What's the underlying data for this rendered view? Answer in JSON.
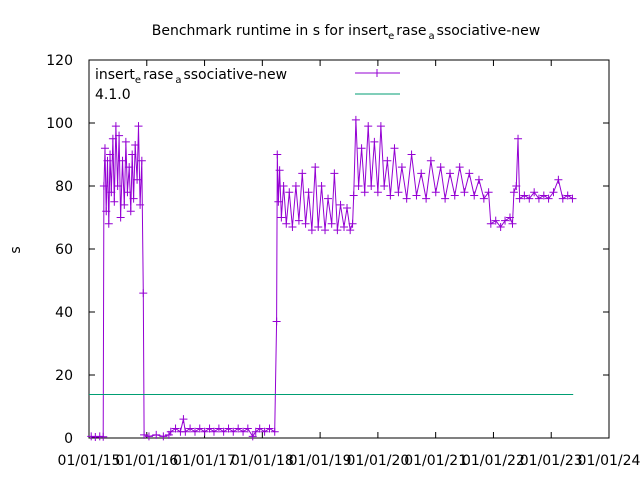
{
  "chart_data": {
    "type": "line",
    "title_parts": [
      "Benchmark runtime in s for insert",
      "e",
      "rase",
      "a",
      "ssociative-new"
    ],
    "ylabel": "s",
    "xlabel": "",
    "xlim": [
      "2015-01-01",
      "2024-01-01"
    ],
    "ylim": [
      0,
      120
    ],
    "y_ticks": [
      "0",
      "20",
      "40",
      "60",
      "80",
      "100",
      "120"
    ],
    "x_ticks": [
      "01/01/15",
      "01/01/16",
      "01/01/17",
      "01/01/18",
      "01/01/19",
      "01/01/20",
      "01/01/21",
      "01/01/22",
      "01/01/23",
      "01/01/24"
    ],
    "legend_position": "top-left",
    "grid": false,
    "series": [
      {
        "name_parts": [
          "insert",
          "e",
          "rase",
          "a",
          "ssociative-new"
        ],
        "color": "#9400d3",
        "marker": "plus",
        "points": [
          [
            "2015-01-15",
            0.5
          ],
          [
            "2015-02-10",
            0.3
          ],
          [
            "2015-03-10",
            0.5
          ],
          [
            "2015-04-01",
            0.4
          ],
          [
            "2015-04-05",
            80
          ],
          [
            "2015-04-12",
            92
          ],
          [
            "2015-04-20",
            72
          ],
          [
            "2015-04-28",
            88
          ],
          [
            "2015-05-06",
            68
          ],
          [
            "2015-05-14",
            90
          ],
          [
            "2015-05-22",
            78
          ],
          [
            "2015-06-01",
            95
          ],
          [
            "2015-06-10",
            75
          ],
          [
            "2015-06-20",
            99
          ],
          [
            "2015-07-01",
            80
          ],
          [
            "2015-07-10",
            96
          ],
          [
            "2015-07-20",
            70
          ],
          [
            "2015-08-01",
            88
          ],
          [
            "2015-08-12",
            74
          ],
          [
            "2015-08-22",
            94
          ],
          [
            "2015-09-01",
            78
          ],
          [
            "2015-09-12",
            86
          ],
          [
            "2015-09-22",
            72
          ],
          [
            "2015-10-01",
            90
          ],
          [
            "2015-10-10",
            76
          ],
          [
            "2015-10-20",
            93
          ],
          [
            "2015-11-01",
            82
          ],
          [
            "2015-11-10",
            99
          ],
          [
            "2015-11-20",
            74
          ],
          [
            "2015-12-01",
            88
          ],
          [
            "2015-12-10",
            46
          ],
          [
            "2015-12-15",
            1
          ],
          [
            "2016-01-15",
            0.5
          ],
          [
            "2016-03-01",
            1
          ],
          [
            "2016-04-15",
            0.5
          ],
          [
            "2016-05-20",
            1
          ],
          [
            "2016-06-01",
            2
          ],
          [
            "2016-07-01",
            3
          ],
          [
            "2016-08-01",
            2
          ],
          [
            "2016-08-20",
            6
          ],
          [
            "2016-09-01",
            2
          ],
          [
            "2016-10-01",
            3
          ],
          [
            "2016-11-01",
            2
          ],
          [
            "2016-12-01",
            3
          ],
          [
            "2017-01-01",
            2
          ],
          [
            "2017-02-01",
            3
          ],
          [
            "2017-03-01",
            2
          ],
          [
            "2017-04-01",
            3
          ],
          [
            "2017-05-01",
            2
          ],
          [
            "2017-06-01",
            3
          ],
          [
            "2017-07-01",
            2
          ],
          [
            "2017-08-01",
            3
          ],
          [
            "2017-09-01",
            2
          ],
          [
            "2017-10-01",
            3
          ],
          [
            "2017-11-01",
            0.5
          ],
          [
            "2017-11-20",
            2
          ],
          [
            "2017-12-15",
            3
          ],
          [
            "2018-01-15",
            2
          ],
          [
            "2018-02-15",
            3
          ],
          [
            "2018-03-20",
            2
          ],
          [
            "2018-04-01",
            37
          ],
          [
            "2018-04-05",
            90
          ],
          [
            "2018-04-12",
            75
          ],
          [
            "2018-04-20",
            85
          ],
          [
            "2018-05-01",
            70
          ],
          [
            "2018-05-15",
            80
          ],
          [
            "2018-06-01",
            68
          ],
          [
            "2018-06-20",
            78
          ],
          [
            "2018-07-10",
            67
          ],
          [
            "2018-08-01",
            80
          ],
          [
            "2018-08-20",
            69
          ],
          [
            "2018-09-10",
            84
          ],
          [
            "2018-10-01",
            68
          ],
          [
            "2018-10-20",
            78
          ],
          [
            "2018-11-10",
            66
          ],
          [
            "2018-12-01",
            86
          ],
          [
            "2018-12-20",
            67
          ],
          [
            "2019-01-10",
            80
          ],
          [
            "2019-02-01",
            66
          ],
          [
            "2019-02-20",
            76
          ],
          [
            "2019-03-15",
            68
          ],
          [
            "2019-04-01",
            84
          ],
          [
            "2019-04-20",
            66
          ],
          [
            "2019-05-10",
            74
          ],
          [
            "2019-06-01",
            67
          ],
          [
            "2019-06-20",
            73
          ],
          [
            "2019-07-10",
            66
          ],
          [
            "2019-07-25",
            68
          ],
          [
            "2019-08-01",
            77
          ],
          [
            "2019-08-15",
            101
          ],
          [
            "2019-09-01",
            80
          ],
          [
            "2019-09-20",
            92
          ],
          [
            "2019-10-10",
            78
          ],
          [
            "2019-11-01",
            99
          ],
          [
            "2019-11-20",
            80
          ],
          [
            "2019-12-10",
            94
          ],
          [
            "2020-01-01",
            78
          ],
          [
            "2020-01-20",
            99
          ],
          [
            "2020-02-10",
            80
          ],
          [
            "2020-03-01",
            88
          ],
          [
            "2020-03-20",
            77
          ],
          [
            "2020-04-15",
            92
          ],
          [
            "2020-05-10",
            78
          ],
          [
            "2020-06-01",
            86
          ],
          [
            "2020-07-01",
            76
          ],
          [
            "2020-08-01",
            90
          ],
          [
            "2020-09-01",
            77
          ],
          [
            "2020-10-01",
            84
          ],
          [
            "2020-11-01",
            76
          ],
          [
            "2020-12-01",
            88
          ],
          [
            "2021-01-01",
            78
          ],
          [
            "2021-02-01",
            86
          ],
          [
            "2021-03-01",
            76
          ],
          [
            "2021-04-01",
            84
          ],
          [
            "2021-05-01",
            77
          ],
          [
            "2021-06-01",
            86
          ],
          [
            "2021-07-01",
            78
          ],
          [
            "2021-08-01",
            84
          ],
          [
            "2021-09-01",
            77
          ],
          [
            "2021-10-01",
            82
          ],
          [
            "2021-11-01",
            76
          ],
          [
            "2021-12-01",
            78
          ],
          [
            "2021-12-15",
            68
          ],
          [
            "2022-01-15",
            69
          ],
          [
            "2022-02-15",
            67
          ],
          [
            "2022-03-15",
            69
          ],
          [
            "2022-04-15",
            70
          ],
          [
            "2022-05-01",
            68
          ],
          [
            "2022-05-10",
            78
          ],
          [
            "2022-05-25",
            80
          ],
          [
            "2022-06-05",
            95
          ],
          [
            "2022-06-15",
            76
          ],
          [
            "2022-07-15",
            77
          ],
          [
            "2022-08-15",
            76
          ],
          [
            "2022-09-15",
            78
          ],
          [
            "2022-10-15",
            76
          ],
          [
            "2022-11-15",
            77
          ],
          [
            "2022-12-15",
            76
          ],
          [
            "2023-01-15",
            78
          ],
          [
            "2023-02-15",
            82
          ],
          [
            "2023-03-15",
            76
          ],
          [
            "2023-04-15",
            77
          ],
          [
            "2023-05-15",
            76
          ]
        ]
      },
      {
        "name": "4.1.0",
        "color": "#009e73",
        "marker": "none",
        "points": [
          [
            "2015-01-01",
            13.8
          ],
          [
            "2023-05-20",
            13.8
          ]
        ]
      }
    ]
  }
}
